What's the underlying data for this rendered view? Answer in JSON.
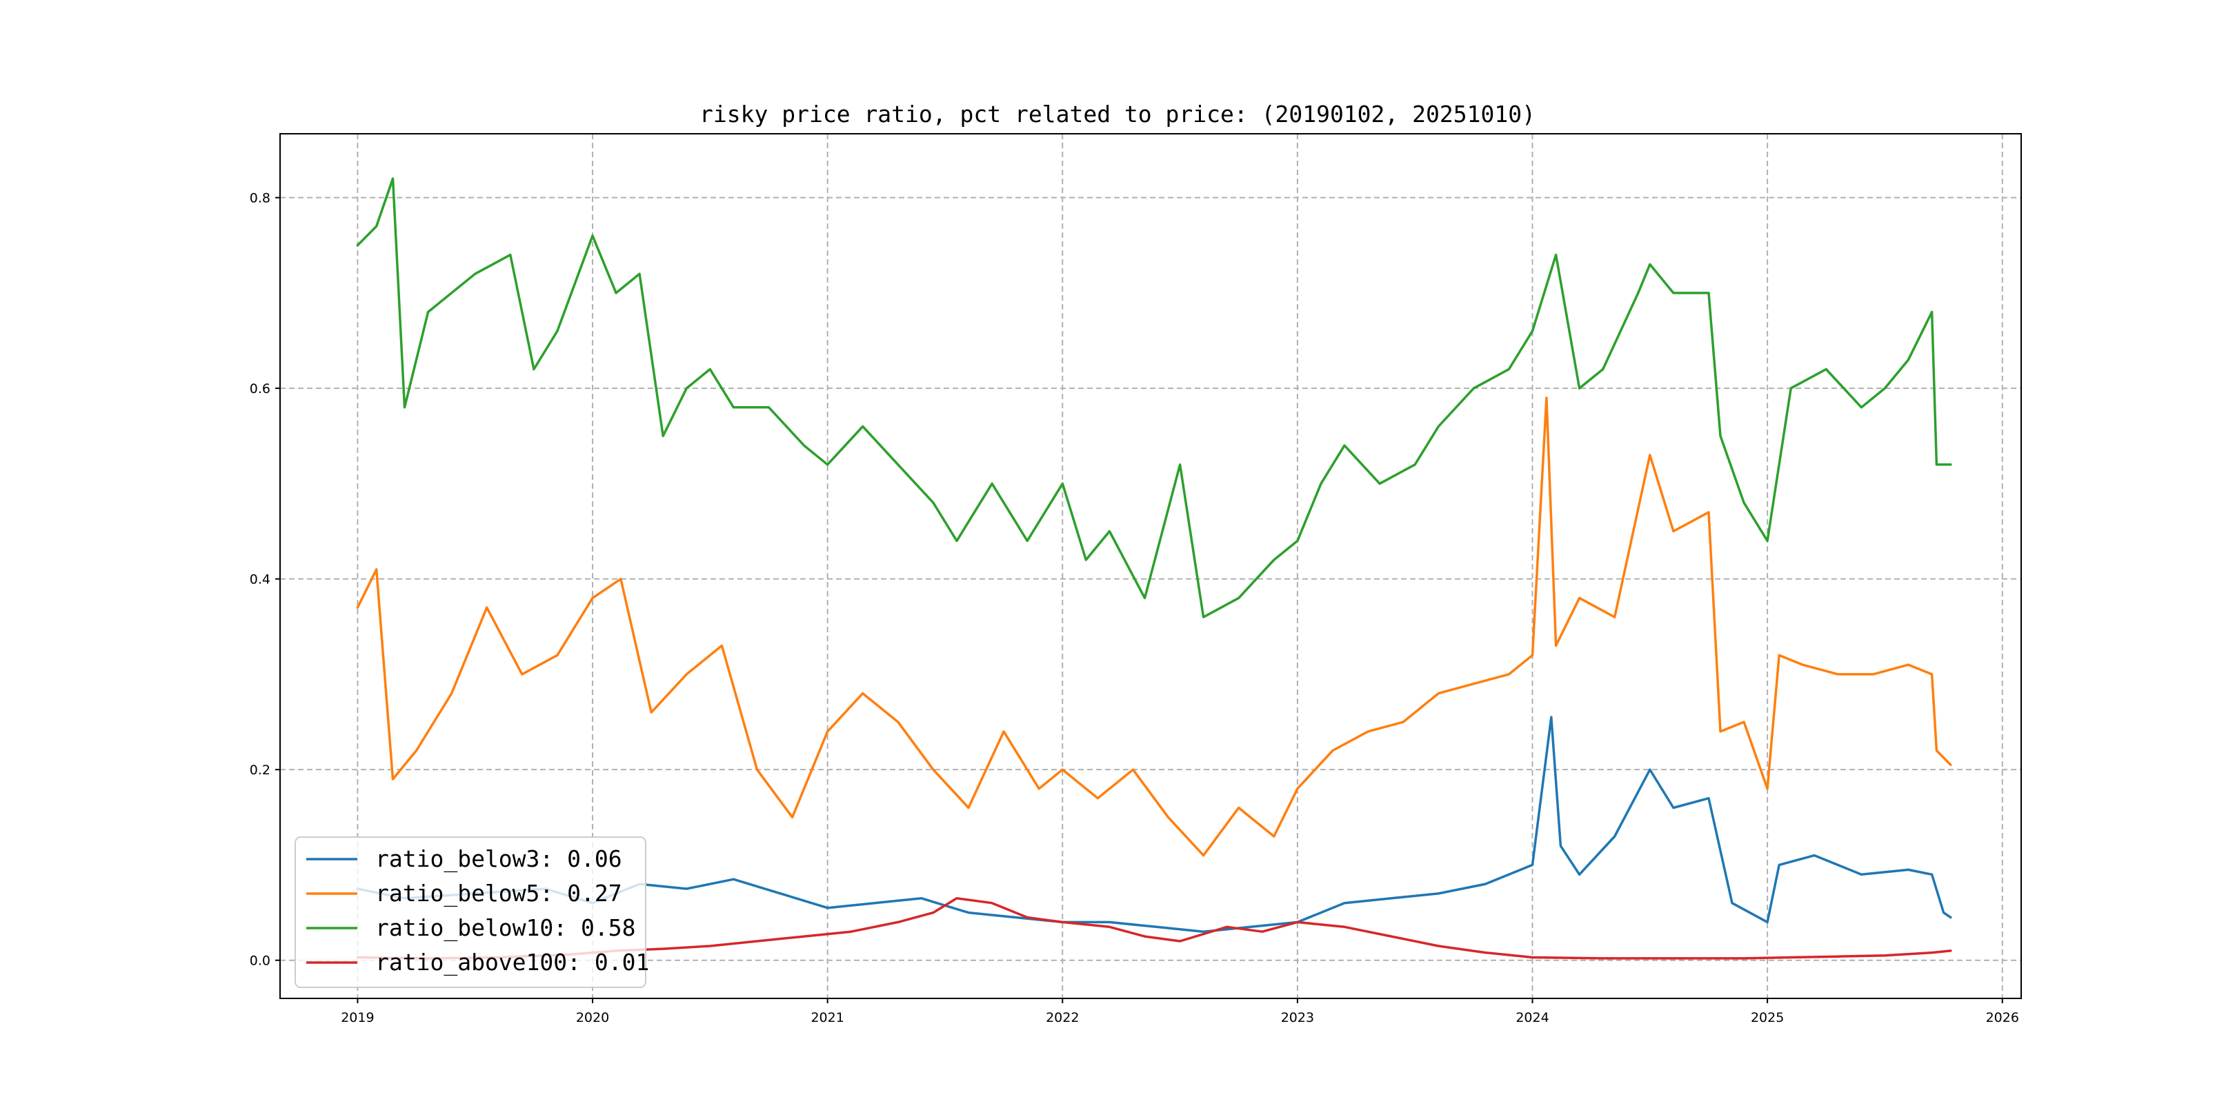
{
  "chart_data": {
    "type": "line",
    "title": "risky price ratio, pct related to price: (20190102, 20251010)",
    "xlabel": "",
    "ylabel": "",
    "xlim": [
      2018.67,
      2026.08
    ],
    "ylim": [
      -0.04,
      0.867
    ],
    "x_ticks": [
      2019,
      2020,
      2021,
      2022,
      2023,
      2024,
      2025,
      2026
    ],
    "x_tick_labels": [
      "2019",
      "2020",
      "2021",
      "2022",
      "2023",
      "2024",
      "2025",
      "2026"
    ],
    "y_ticks": [
      0.0,
      0.2,
      0.4,
      0.6,
      0.8
    ],
    "y_tick_labels": [
      "0.0",
      "0.2",
      "0.4",
      "0.6",
      "0.8"
    ],
    "grid": true,
    "legend_position": "lower-left",
    "series": [
      {
        "name": "ratio_below3",
        "legend_label": "ratio_below3: 0.06",
        "color": "#1f77b4",
        "x": [
          2019.0,
          2019.2,
          2019.5,
          2019.8,
          2020.0,
          2020.2,
          2020.4,
          2020.6,
          2020.8,
          2021.0,
          2021.2,
          2021.4,
          2021.6,
          2021.8,
          2022.0,
          2022.2,
          2022.4,
          2022.6,
          2022.8,
          2023.0,
          2023.2,
          2023.4,
          2023.6,
          2023.8,
          2024.0,
          2024.08,
          2024.12,
          2024.2,
          2024.35,
          2024.5,
          2024.6,
          2024.75,
          2024.85,
          2025.0,
          2025.05,
          2025.2,
          2025.4,
          2025.6,
          2025.7,
          2025.75,
          2025.78
        ],
        "y": [
          0.075,
          0.065,
          0.07,
          0.075,
          0.06,
          0.08,
          0.075,
          0.085,
          0.07,
          0.055,
          0.06,
          0.065,
          0.05,
          0.045,
          0.04,
          0.04,
          0.035,
          0.03,
          0.035,
          0.04,
          0.06,
          0.065,
          0.07,
          0.08,
          0.1,
          0.255,
          0.12,
          0.09,
          0.13,
          0.2,
          0.16,
          0.17,
          0.06,
          0.04,
          0.1,
          0.11,
          0.09,
          0.095,
          0.09,
          0.05,
          0.045
        ]
      },
      {
        "name": "ratio_below5",
        "legend_label": "ratio_below5: 0.27",
        "color": "#ff7f0e",
        "x": [
          2019.0,
          2019.08,
          2019.15,
          2019.25,
          2019.4,
          2019.55,
          2019.7,
          2019.85,
          2020.0,
          2020.12,
          2020.25,
          2020.4,
          2020.55,
          2020.7,
          2020.85,
          2021.0,
          2021.15,
          2021.3,
          2021.45,
          2021.6,
          2021.75,
          2021.9,
          2022.0,
          2022.15,
          2022.3,
          2022.45,
          2022.6,
          2022.75,
          2022.9,
          2023.0,
          2023.15,
          2023.3,
          2023.45,
          2023.6,
          2023.75,
          2023.9,
          2024.0,
          2024.06,
          2024.1,
          2024.2,
          2024.35,
          2024.5,
          2024.6,
          2024.75,
          2024.8,
          2024.9,
          2025.0,
          2025.05,
          2025.15,
          2025.3,
          2025.45,
          2025.6,
          2025.7,
          2025.72,
          2025.78
        ],
        "y": [
          0.37,
          0.41,
          0.19,
          0.22,
          0.28,
          0.37,
          0.3,
          0.32,
          0.38,
          0.4,
          0.26,
          0.3,
          0.33,
          0.2,
          0.15,
          0.24,
          0.28,
          0.25,
          0.2,
          0.16,
          0.24,
          0.18,
          0.2,
          0.17,
          0.2,
          0.15,
          0.11,
          0.16,
          0.13,
          0.18,
          0.22,
          0.24,
          0.25,
          0.28,
          0.29,
          0.3,
          0.32,
          0.59,
          0.33,
          0.38,
          0.36,
          0.53,
          0.45,
          0.47,
          0.24,
          0.25,
          0.18,
          0.32,
          0.31,
          0.3,
          0.3,
          0.31,
          0.3,
          0.22,
          0.205
        ]
      },
      {
        "name": "ratio_below10",
        "legend_label": "ratio_below10: 0.58",
        "color": "#2ca02c",
        "x": [
          2019.0,
          2019.08,
          2019.15,
          2019.2,
          2019.3,
          2019.5,
          2019.65,
          2019.75,
          2019.85,
          2020.0,
          2020.1,
          2020.2,
          2020.3,
          2020.4,
          2020.5,
          2020.6,
          2020.75,
          2020.9,
          2021.0,
          2021.15,
          2021.3,
          2021.45,
          2021.55,
          2021.7,
          2021.85,
          2022.0,
          2022.1,
          2022.2,
          2022.35,
          2022.5,
          2022.6,
          2022.75,
          2022.9,
          2023.0,
          2023.1,
          2023.2,
          2023.35,
          2023.5,
          2023.6,
          2023.75,
          2023.9,
          2024.0,
          2024.1,
          2024.2,
          2024.3,
          2024.45,
          2024.5,
          2024.6,
          2024.75,
          2024.8,
          2024.9,
          2025.0,
          2025.1,
          2025.25,
          2025.4,
          2025.5,
          2025.6,
          2025.7,
          2025.72,
          2025.78
        ],
        "y": [
          0.75,
          0.77,
          0.82,
          0.58,
          0.68,
          0.72,
          0.74,
          0.62,
          0.66,
          0.76,
          0.7,
          0.72,
          0.55,
          0.6,
          0.62,
          0.58,
          0.58,
          0.54,
          0.52,
          0.56,
          0.52,
          0.48,
          0.44,
          0.5,
          0.44,
          0.5,
          0.42,
          0.45,
          0.38,
          0.52,
          0.36,
          0.38,
          0.42,
          0.44,
          0.5,
          0.54,
          0.5,
          0.52,
          0.56,
          0.6,
          0.62,
          0.66,
          0.74,
          0.6,
          0.62,
          0.7,
          0.73,
          0.7,
          0.7,
          0.55,
          0.48,
          0.44,
          0.6,
          0.62,
          0.58,
          0.6,
          0.63,
          0.68,
          0.52,
          0.52
        ]
      },
      {
        "name": "ratio_above100",
        "legend_label": "ratio_above100: 0.01",
        "color": "#d62728",
        "x": [
          2019.0,
          2019.3,
          2019.6,
          2019.9,
          2020.1,
          2020.3,
          2020.5,
          2020.7,
          2020.9,
          2021.1,
          2021.3,
          2021.45,
          2021.55,
          2021.7,
          2021.85,
          2022.0,
          2022.2,
          2022.35,
          2022.5,
          2022.7,
          2022.85,
          2023.0,
          2023.2,
          2023.4,
          2023.6,
          2023.8,
          2024.0,
          2024.3,
          2024.6,
          2024.9,
          2025.1,
          2025.3,
          2025.5,
          2025.7,
          2025.78
        ],
        "y": [
          0.003,
          0.002,
          0.003,
          0.006,
          0.01,
          0.012,
          0.015,
          0.02,
          0.025,
          0.03,
          0.04,
          0.05,
          0.065,
          0.06,
          0.045,
          0.04,
          0.035,
          0.025,
          0.02,
          0.035,
          0.03,
          0.04,
          0.035,
          0.025,
          0.015,
          0.008,
          0.003,
          0.002,
          0.002,
          0.002,
          0.003,
          0.004,
          0.005,
          0.008,
          0.01
        ]
      }
    ]
  }
}
